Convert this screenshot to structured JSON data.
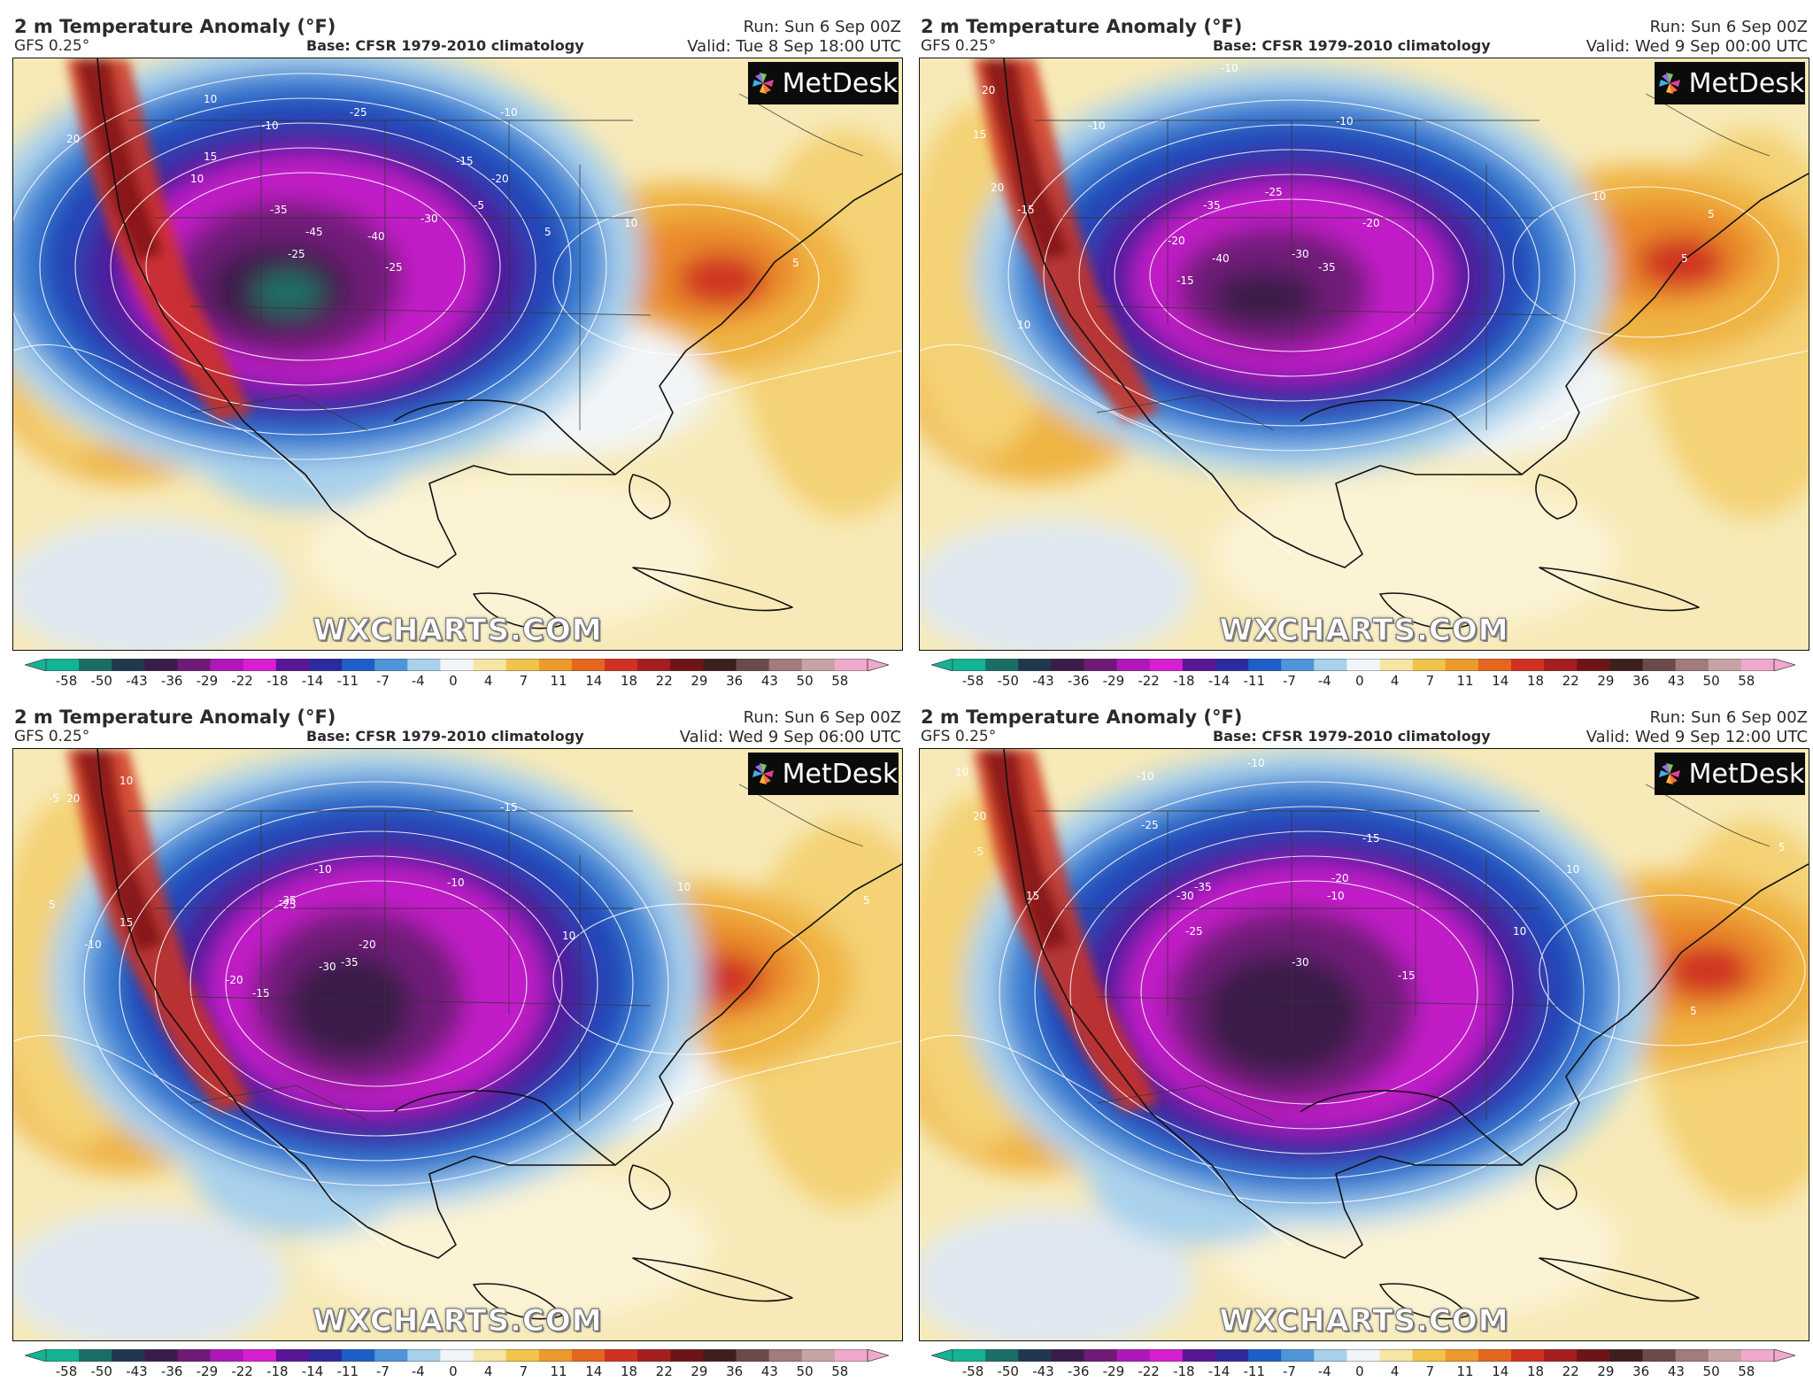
{
  "panels": [
    {
      "title": "2 m Temperature Anomaly (°F)",
      "model": "GFS 0.25°",
      "base": "Base: CFSR 1979-2010 climatology",
      "run": "Run: Sun 6 Sep 00Z",
      "valid": "Valid: Tue 8 Sep 18:00 UTC",
      "logo": "MetDesk",
      "watermark": "WXCHARTS.COM",
      "labels": [
        "-45",
        "-40",
        "-35",
        "-30",
        "-25",
        "-25",
        "-25",
        "-20",
        "-15",
        "-10",
        "-10",
        "-5",
        "5",
        "5",
        "10",
        "10",
        "10",
        "15",
        "20"
      ]
    },
    {
      "title": "2 m Temperature Anomaly (°F)",
      "model": "GFS 0.25°",
      "base": "Base: CFSR 1979-2010 climatology",
      "run": "Run: Sun 6 Sep 00Z",
      "valid": "Valid: Wed 9 Sep 00:00 UTC",
      "logo": "MetDesk",
      "watermark": "WXCHARTS.COM",
      "labels": [
        "-40",
        "-35",
        "-35",
        "-30",
        "-25",
        "-20",
        "-20",
        "-15",
        "-15",
        "-10",
        "-10",
        "-10",
        "5",
        "5",
        "10",
        "10",
        "15",
        "20",
        "20"
      ]
    },
    {
      "title": "2 m Temperature Anomaly (°F)",
      "model": "GFS 0.25°",
      "base": "Base: CFSR 1979-2010 climatology",
      "run": "Run: Sun 6 Sep 00Z",
      "valid": "Valid: Wed 9 Sep 06:00 UTC",
      "logo": "MetDesk",
      "watermark": "WXCHARTS.COM",
      "labels": [
        "-35",
        "-35",
        "-30",
        "-25",
        "-20",
        "-20",
        "-15",
        "-15",
        "-10",
        "-10",
        "-10",
        "-5",
        "5",
        "5",
        "10",
        "10",
        "10",
        "15",
        "20"
      ]
    },
    {
      "title": "2 m Temperature Anomaly (°F)",
      "model": "GFS 0.25°",
      "base": "Base: CFSR 1979-2010 climatology",
      "run": "Run: Sun 6 Sep 00Z",
      "valid": "Valid: Wed 9 Sep 12:00 UTC",
      "logo": "MetDesk",
      "watermark": "WXCHARTS.COM",
      "labels": [
        "-35",
        "-30",
        "-30",
        "-25",
        "-25",
        "-20",
        "-15",
        "-15",
        "-10",
        "-10",
        "-10",
        "-5",
        "5",
        "5",
        "10",
        "10",
        "10",
        "15",
        "20"
      ]
    }
  ],
  "colorbar": {
    "ticks": [
      "-58",
      "-50",
      "-43",
      "-36",
      "-29",
      "-22",
      "-18",
      "-14",
      "-11",
      "-7",
      "-4",
      "0",
      "4",
      "7",
      "11",
      "14",
      "18",
      "22",
      "29",
      "36",
      "43",
      "50",
      "58"
    ],
    "colors": [
      "#13b394",
      "#1b6e66",
      "#20384e",
      "#3a1c4a",
      "#701a78",
      "#b017b8",
      "#d61fd0",
      "#5a1496",
      "#2c2a9c",
      "#1e5ec8",
      "#4f95d8",
      "#a9d1ec",
      "#f2f5f7",
      "#f6e6a4",
      "#f2c44c",
      "#ec9a2c",
      "#e5661f",
      "#cf3220",
      "#a41d1f",
      "#6d1417",
      "#3d1f1f",
      "#6a4a4a",
      "#a27b7b",
      "#c6a4a6",
      "#f0a9cc"
    ]
  },
  "anomaly_colors": {
    "deep": "#1b6e66",
    "darkest": "#3a1c4a",
    "purple": "#701a78",
    "magenta": "#c21cc8",
    "indigo": "#4a1b9c",
    "blue": "#2346b8",
    "midblue": "#3f84d4",
    "lightblue": "#a9d1ec",
    "white": "#f2f5f7",
    "paleyellow": "#f7eab8",
    "yellow": "#f4d274",
    "gold": "#efb443",
    "orange": "#ea8a2a",
    "red": "#cf3220",
    "darkred": "#7e1418",
    "brown": "#3d1f1f"
  }
}
